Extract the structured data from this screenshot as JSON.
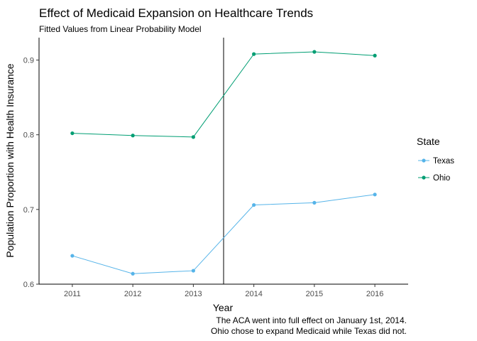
{
  "chart_data": {
    "type": "line",
    "title": "Effect of Medicaid Expansion on Healthcare Trends",
    "subtitle": "Fitted Values from Linear Probability Model",
    "xlabel": "Year",
    "ylabel": "Population Proportion with Health Insurance",
    "x": [
      2011,
      2012,
      2013,
      2014,
      2015,
      2016
    ],
    "x_ticks": [
      "2011",
      "2012",
      "2013",
      "2014",
      "2015",
      "2016"
    ],
    "xlim": [
      2010.45,
      2016.55
    ],
    "ylim": [
      0.6,
      0.93
    ],
    "y_ticks": [
      0.6,
      0.7,
      0.8,
      0.9
    ],
    "y_tick_labels": [
      "0.6",
      "0.7",
      "0.8",
      "0.9"
    ],
    "vline_x": 2013.5,
    "grid": false,
    "legend": {
      "title": "State",
      "position": "right"
    },
    "series": [
      {
        "name": "Texas",
        "color": "#56B4E9",
        "values": [
          0.638,
          0.614,
          0.618,
          0.706,
          0.709,
          0.72
        ]
      },
      {
        "name": "Ohio",
        "color": "#009E73",
        "values": [
          0.802,
          0.799,
          0.797,
          0.908,
          0.911,
          0.906
        ]
      }
    ],
    "caption": [
      "The ACA went into full effect on January 1st, 2014.",
      "Ohio chose to expand Medicaid while Texas did not."
    ]
  }
}
